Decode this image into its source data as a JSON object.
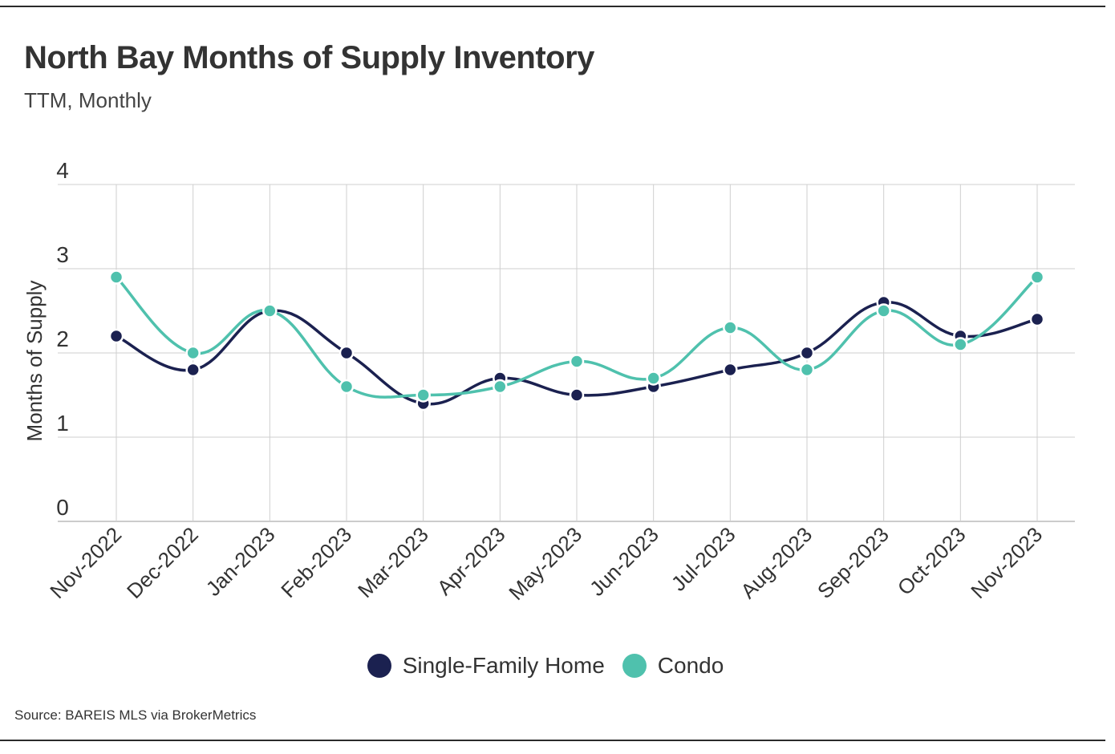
{
  "header": {
    "title": "North Bay Months of Supply Inventory",
    "subtitle": "TTM, Monthly"
  },
  "footer": {
    "source": "Source:  BAREIS MLS via BrokerMetrics"
  },
  "colors": {
    "single_family": "#1b2150",
    "condo": "#4fc1ad",
    "grid": "#cfcfcf",
    "axis_text": "#333333"
  },
  "chart_data": {
    "type": "line",
    "title": "North Bay Months of Supply Inventory",
    "subtitle": "TTM, Monthly",
    "xlabel": "",
    "ylabel": "Months of Supply",
    "ylim": [
      0,
      4
    ],
    "yticks": [
      0,
      1,
      2,
      3,
      4
    ],
    "grid": true,
    "legend": "bottom-center",
    "categories": [
      "Nov-2022",
      "Dec-2022",
      "Jan-2023",
      "Feb-2023",
      "Mar-2023",
      "Apr-2023",
      "May-2023",
      "Jun-2023",
      "Jul-2023",
      "Aug-2023",
      "Sep-2023",
      "Oct-2023",
      "Nov-2023"
    ],
    "series": [
      {
        "name": "Single-Family Home",
        "color": "#1b2150",
        "values": [
          2.2,
          1.8,
          2.5,
          2.0,
          1.4,
          1.7,
          1.5,
          1.6,
          1.8,
          2.0,
          2.6,
          2.2,
          2.4
        ]
      },
      {
        "name": "Condo",
        "color": "#4fc1ad",
        "values": [
          2.9,
          2.0,
          2.5,
          1.6,
          1.5,
          1.6,
          1.9,
          1.7,
          2.3,
          1.8,
          2.5,
          2.1,
          2.9
        ]
      }
    ]
  }
}
